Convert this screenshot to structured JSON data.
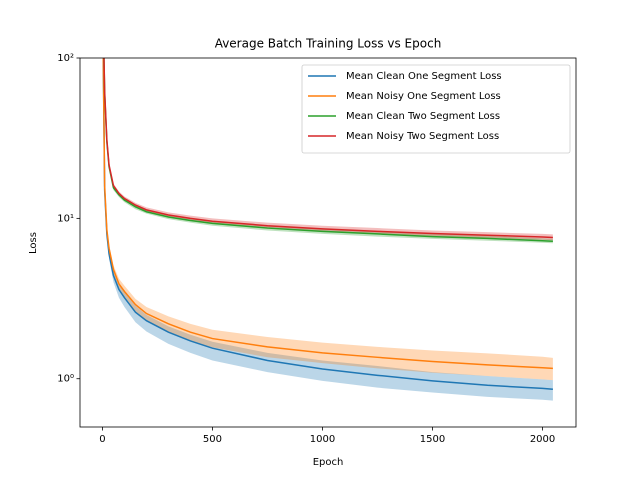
{
  "chart_data": {
    "type": "line",
    "title": "Average Batch Training Loss vs Epoch",
    "x_label": "Epoch",
    "y_label": "Loss",
    "yscale": "log",
    "legend": "upper right",
    "xlim": [
      -102,
      2152
    ],
    "ylim": [
      0.5,
      100
    ],
    "xticks": [
      0,
      500,
      1000,
      1500,
      2000
    ],
    "yticks": [
      {
        "value": 1,
        "label": "10⁰"
      },
      {
        "value": 10,
        "label": "10¹"
      },
      {
        "value": 100,
        "label": "10²"
      }
    ],
    "x": [
      0,
      10,
      20,
      30,
      50,
      75,
      100,
      150,
      200,
      300,
      400,
      500,
      750,
      1000,
      1250,
      1500,
      1750,
      2000,
      2047
    ],
    "series": [
      {
        "name": "Mean Clean One Segment Loss",
        "color": "#1f77b4",
        "values": [
          300,
          15,
          8,
          6,
          4.4,
          3.6,
          3.2,
          2.6,
          2.3,
          1.95,
          1.72,
          1.55,
          1.3,
          1.15,
          1.05,
          0.97,
          0.91,
          0.87,
          0.86
        ],
        "lower": [
          300,
          14,
          7.5,
          5.6,
          4.0,
          3.2,
          2.8,
          2.25,
          1.97,
          1.65,
          1.45,
          1.3,
          1.1,
          0.97,
          0.88,
          0.82,
          0.77,
          0.74,
          0.73
        ],
        "upper": [
          300,
          16,
          8.5,
          6.4,
          4.8,
          3.9,
          3.5,
          2.85,
          2.5,
          2.12,
          1.88,
          1.7,
          1.45,
          1.3,
          1.2,
          1.1,
          1.04,
          0.99,
          0.98
        ]
      },
      {
        "name": "Mean Noisy One Segment Loss",
        "color": "#ff7f0e",
        "values": [
          300,
          16,
          8.5,
          6.5,
          4.8,
          3.9,
          3.5,
          2.9,
          2.55,
          2.2,
          1.95,
          1.78,
          1.58,
          1.45,
          1.36,
          1.28,
          1.22,
          1.17,
          1.16
        ],
        "lower": [
          300,
          15,
          8,
          6.2,
          4.5,
          3.6,
          3.2,
          2.6,
          2.3,
          1.95,
          1.72,
          1.57,
          1.36,
          1.25,
          1.16,
          1.09,
          1.04,
          0.99,
          0.98
        ],
        "upper": [
          300,
          17,
          9,
          6.9,
          5.1,
          4.2,
          3.8,
          3.15,
          2.8,
          2.45,
          2.2,
          2.02,
          1.82,
          1.68,
          1.58,
          1.5,
          1.44,
          1.37,
          1.35
        ]
      },
      {
        "name": "Mean Clean Two Segment Loss",
        "color": "#2ca02c",
        "values": [
          300,
          60,
          30,
          21,
          15.5,
          14,
          13,
          11.8,
          11,
          10.2,
          9.7,
          9.3,
          8.7,
          8.3,
          8.0,
          7.7,
          7.5,
          7.25,
          7.2
        ],
        "lower": [
          300,
          58,
          29,
          20.5,
          15,
          13.6,
          12.6,
          11.4,
          10.7,
          9.9,
          9.4,
          9.0,
          8.4,
          8.0,
          7.7,
          7.45,
          7.25,
          7.05,
          7.0
        ],
        "upper": [
          300,
          62,
          31,
          21.5,
          16,
          14.4,
          13.4,
          12.2,
          11.3,
          10.5,
          10.0,
          9.6,
          9.0,
          8.6,
          8.3,
          8.0,
          7.8,
          7.5,
          7.45
        ]
      },
      {
        "name": "Mean Noisy Two Segment Loss",
        "color": "#d62728",
        "values": [
          300,
          62,
          31,
          21.5,
          16,
          14.3,
          13.3,
          12.1,
          11.3,
          10.5,
          10.0,
          9.6,
          9.0,
          8.6,
          8.3,
          8.05,
          7.85,
          7.65,
          7.6
        ],
        "lower": [
          300,
          60,
          30,
          21,
          15.5,
          13.9,
          12.9,
          11.7,
          11.0,
          10.2,
          9.7,
          9.3,
          8.7,
          8.3,
          8.0,
          7.75,
          7.55,
          7.35,
          7.3
        ],
        "upper": [
          300,
          64,
          32,
          22,
          16.5,
          14.7,
          13.7,
          12.5,
          11.7,
          10.9,
          10.4,
          10.0,
          9.4,
          9.0,
          8.7,
          8.4,
          8.2,
          8.0,
          7.95
        ]
      }
    ]
  }
}
